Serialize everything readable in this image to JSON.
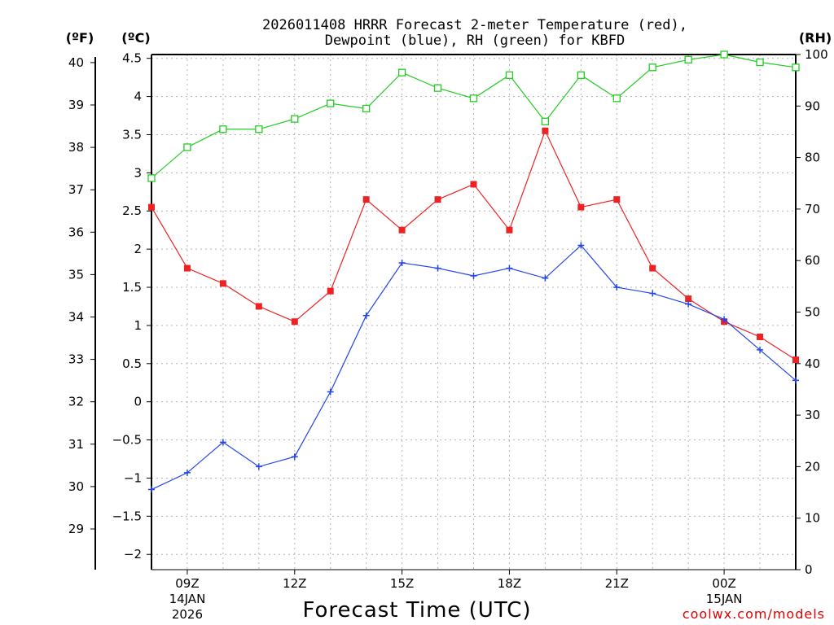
{
  "chart_data": {
    "type": "line",
    "title_line1": "2026011408 HRRR Forecast 2-meter Temperature (red),",
    "title_line2": "Dewpoint (blue), RH (green) for KBFD",
    "y_left_outer_label": "(ºF)",
    "y_left_inner_label": "(ºC)",
    "y_right_label": "(RH)",
    "xlabel": "Forecast Time (UTC)",
    "credit": "coolwx.com/models",
    "x_range": [
      8,
      26
    ],
    "x_hours": [
      8,
      9,
      10,
      11,
      12,
      13,
      14,
      15,
      16,
      17,
      18,
      19,
      20,
      21,
      22,
      23,
      24,
      25,
      26
    ],
    "celsius_range": [
      -2.2,
      4.55
    ],
    "fahrenheit_ticks": [
      "40",
      "39",
      "38",
      "37",
      "36",
      "35",
      "34",
      "33",
      "32",
      "31",
      "30",
      "29"
    ],
    "fahrenheit_tick_values": [
      40,
      39,
      38,
      37,
      36,
      35,
      34,
      33,
      32,
      31,
      30,
      29
    ],
    "celsius_ticks": [
      "4.5",
      "4",
      "3.5",
      "3",
      "2.5",
      "2",
      "1.5",
      "1",
      "0.5",
      "0",
      "−0.5",
      "−1",
      "−1.5",
      "−2"
    ],
    "celsius_tick_values": [
      4.5,
      4,
      3.5,
      3,
      2.5,
      2,
      1.5,
      1,
      0.5,
      0,
      -0.5,
      -1,
      -1.5,
      -2
    ],
    "rh_range": [
      0,
      100
    ],
    "rh_ticks": [
      "100",
      "90",
      "80",
      "70",
      "60",
      "50",
      "40",
      "30",
      "20",
      "10",
      "0"
    ],
    "rh_tick_values": [
      100,
      90,
      80,
      70,
      60,
      50,
      40,
      30,
      20,
      10,
      0
    ],
    "x_ticks": [
      {
        "hour": 9,
        "label": "09Z",
        "date": "14JAN",
        "year": "2026"
      },
      {
        "hour": 12,
        "label": "12Z",
        "date": "",
        "year": ""
      },
      {
        "hour": 15,
        "label": "15Z",
        "date": "",
        "year": ""
      },
      {
        "hour": 18,
        "label": "18Z",
        "date": "",
        "year": ""
      },
      {
        "hour": 21,
        "label": "21Z",
        "date": "",
        "year": ""
      },
      {
        "hour": 24,
        "label": "00Z",
        "date": "15JAN",
        "year": ""
      }
    ],
    "series": [
      {
        "name": "Temperature",
        "units": "C",
        "color": "#ee2222",
        "marker": "filled-square",
        "values": [
          2.55,
          1.75,
          1.55,
          1.25,
          1.05,
          1.45,
          2.65,
          2.25,
          2.65,
          2.85,
          2.25,
          3.55,
          2.55,
          2.65,
          1.75,
          1.35,
          1.05,
          0.85,
          0.55
        ]
      },
      {
        "name": "Dewpoint",
        "units": "C",
        "color": "#2244ee",
        "marker": "plus",
        "values": [
          -1.15,
          -0.93,
          -0.53,
          -0.85,
          -0.72,
          0.13,
          1.13,
          1.82,
          1.75,
          1.65,
          1.75,
          1.62,
          2.05,
          1.5,
          1.42,
          1.28,
          1.08,
          0.68,
          0.28
        ]
      },
      {
        "name": "RH",
        "units": "%",
        "color": "#22cc22",
        "marker": "open-square",
        "values": [
          76,
          82,
          85.5,
          85.5,
          87.5,
          90.5,
          89.5,
          96.5,
          93.5,
          91.5,
          96,
          87,
          96,
          91.5,
          97.5,
          99,
          100,
          98.5,
          97.5
        ]
      }
    ]
  }
}
